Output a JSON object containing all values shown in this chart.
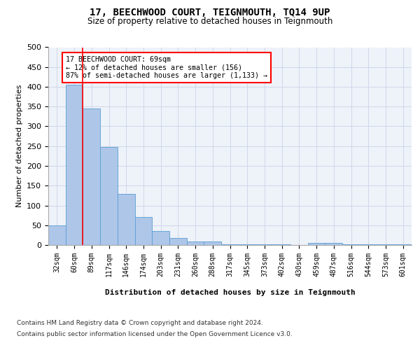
{
  "title": "17, BEECHWOOD COURT, TEIGNMOUTH, TQ14 9UP",
  "subtitle": "Size of property relative to detached houses in Teignmouth",
  "xlabel": "Distribution of detached houses by size in Teignmouth",
  "ylabel": "Number of detached properties",
  "categories": [
    "32sqm",
    "60sqm",
    "89sqm",
    "117sqm",
    "146sqm",
    "174sqm",
    "203sqm",
    "231sqm",
    "260sqm",
    "288sqm",
    "317sqm",
    "345sqm",
    "373sqm",
    "402sqm",
    "430sqm",
    "459sqm",
    "487sqm",
    "516sqm",
    "544sqm",
    "573sqm",
    "601sqm"
  ],
  "values": [
    50,
    405,
    345,
    247,
    130,
    70,
    35,
    18,
    8,
    8,
    2,
    1,
    1,
    1,
    0,
    6,
    6,
    2,
    2,
    1,
    2
  ],
  "bar_color": "#aec6e8",
  "bar_edge_color": "#5a9fd4",
  "grid_color": "#d0d8e8",
  "background_color": "#eef2f9",
  "property_line_x": 1.5,
  "property_line_color": "red",
  "annotation_text": "17 BEECHWOOD COURT: 69sqm\n← 12% of detached houses are smaller (156)\n87% of semi-detached houses are larger (1,133) →",
  "annotation_box_color": "white",
  "annotation_box_edge": "red",
  "ylim": [
    0,
    500
  ],
  "yticks": [
    0,
    50,
    100,
    150,
    200,
    250,
    300,
    350,
    400,
    450,
    500
  ],
  "footer_line1": "Contains HM Land Registry data © Crown copyright and database right 2024.",
  "footer_line2": "Contains public sector information licensed under the Open Government Licence v3.0."
}
